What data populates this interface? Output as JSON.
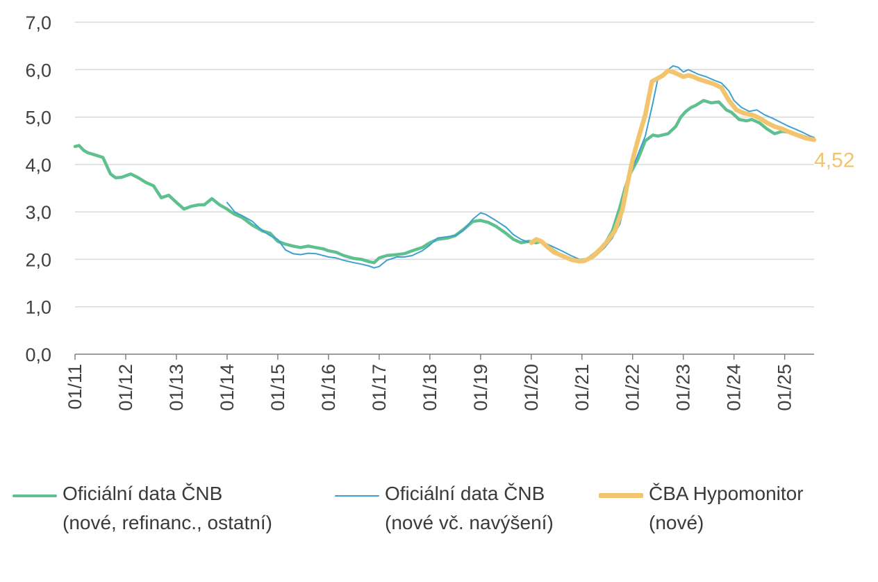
{
  "chart_data": {
    "type": "line",
    "title": "",
    "xlabel": "",
    "ylabel": "",
    "ylim": [
      0,
      7
    ],
    "yticks": [
      "0,0",
      "1,0",
      "2,0",
      "3,0",
      "4,0",
      "5,0",
      "6,0",
      "7,0"
    ],
    "xticks": [
      "01/11",
      "01/12",
      "01/13",
      "01/14",
      "01/15",
      "01/16",
      "01/17",
      "01/18",
      "01/19",
      "01/20",
      "01/21",
      "01/22",
      "01/23",
      "01/24",
      "01/25"
    ],
    "grid": "horizontal",
    "legend_position": "bottom",
    "end_label": "4,52",
    "series": [
      {
        "name_line1": "Oficiální data ČNB",
        "name_line2": "(nové, refinanc., ostatní)",
        "color": "#5ec08e",
        "x": [
          2011.0,
          2011.08,
          2011.17,
          2011.25,
          2011.4,
          2011.55,
          2011.7,
          2011.8,
          2011.92,
          2012.1,
          2012.25,
          2012.4,
          2012.55,
          2012.7,
          2012.85,
          2013.0,
          2013.15,
          2013.3,
          2013.45,
          2013.55,
          2013.7,
          2013.85,
          2014.0,
          2014.05,
          2014.15,
          2014.3,
          2014.5,
          2014.7,
          2014.85,
          2015.0,
          2015.15,
          2015.3,
          2015.45,
          2015.6,
          2015.75,
          2015.9,
          2016.0,
          2016.15,
          2016.3,
          2016.5,
          2016.65,
          2016.8,
          2016.9,
          2017.0,
          2017.15,
          2017.35,
          2017.5,
          2017.65,
          2017.85,
          2018.0,
          2018.15,
          2018.35,
          2018.5,
          2018.65,
          2018.85,
          2019.0,
          2019.15,
          2019.3,
          2019.5,
          2019.65,
          2019.8,
          2019.95,
          2020.1,
          2020.2,
          2020.3,
          2020.45,
          2020.6,
          2020.8,
          2020.95,
          2021.1,
          2021.25,
          2021.45,
          2021.6,
          2021.75,
          2021.85,
          2021.95,
          2022.1,
          2022.25,
          2022.4,
          2022.5,
          2022.7,
          2022.85,
          2022.95,
          2023.05,
          2023.15,
          2023.25,
          2023.4,
          2023.55,
          2023.7,
          2023.85,
          2023.95,
          2024.1,
          2024.25,
          2024.35,
          2024.5,
          2024.65,
          2024.8,
          2024.95,
          2025.1,
          2025.2,
          2025.35,
          2025.5,
          2025.58
        ],
        "values": [
          4.38,
          4.4,
          4.3,
          4.25,
          4.2,
          4.15,
          3.8,
          3.72,
          3.73,
          3.8,
          3.72,
          3.62,
          3.55,
          3.3,
          3.35,
          3.2,
          3.06,
          3.12,
          3.15,
          3.15,
          3.28,
          3.15,
          3.06,
          3.02,
          2.95,
          2.88,
          2.72,
          2.6,
          2.55,
          2.38,
          2.32,
          2.28,
          2.25,
          2.28,
          2.25,
          2.22,
          2.18,
          2.15,
          2.08,
          2.02,
          2.0,
          1.95,
          1.93,
          2.03,
          2.08,
          2.1,
          2.12,
          2.18,
          2.25,
          2.35,
          2.42,
          2.45,
          2.5,
          2.62,
          2.8,
          2.82,
          2.78,
          2.7,
          2.55,
          2.42,
          2.35,
          2.38,
          2.35,
          2.38,
          2.3,
          2.18,
          2.08,
          2.0,
          1.98,
          2.0,
          2.12,
          2.32,
          2.6,
          3.1,
          3.5,
          3.8,
          4.1,
          4.5,
          4.62,
          4.6,
          4.65,
          4.8,
          5.0,
          5.12,
          5.2,
          5.25,
          5.35,
          5.3,
          5.32,
          5.15,
          5.1,
          4.95,
          4.92,
          4.95,
          4.88,
          4.75,
          4.65,
          4.7,
          4.68,
          4.65,
          4.6,
          4.55,
          4.52
        ]
      },
      {
        "name_line1": "Oficiální data ČNB",
        "name_line2": "(nové vč. navýšení)",
        "color": "#3f9fd0",
        "x": [
          2014.0,
          2014.15,
          2014.3,
          2014.5,
          2014.7,
          2014.85,
          2015.0,
          2015.15,
          2015.3,
          2015.45,
          2015.6,
          2015.75,
          2015.9,
          2016.0,
          2016.15,
          2016.3,
          2016.5,
          2016.65,
          2016.8,
          2016.9,
          2017.0,
          2017.15,
          2017.35,
          2017.5,
          2017.65,
          2017.85,
          2018.0,
          2018.15,
          2018.35,
          2018.5,
          2018.65,
          2018.85,
          2019.0,
          2019.1,
          2019.3,
          2019.5,
          2019.65,
          2019.8,
          2019.95,
          2020.1,
          2020.25,
          2020.4,
          2020.6,
          2020.8,
          2020.95,
          2021.1,
          2021.25,
          2021.45,
          2021.6,
          2021.75,
          2021.85,
          2021.95,
          2022.1,
          2022.25,
          2022.4,
          2022.5,
          2022.6,
          2022.7,
          2022.8,
          2022.9,
          2023.0,
          2023.1,
          2023.2,
          2023.3,
          2023.45,
          2023.6,
          2023.75,
          2023.9,
          2024.0,
          2024.15,
          2024.3,
          2024.45,
          2024.6,
          2024.75,
          2024.9,
          2025.05,
          2025.2,
          2025.35,
          2025.5,
          2025.58
        ],
        "values": [
          3.2,
          3.0,
          2.92,
          2.8,
          2.6,
          2.5,
          2.42,
          2.2,
          2.12,
          2.1,
          2.13,
          2.12,
          2.08,
          2.05,
          2.03,
          1.98,
          1.93,
          1.9,
          1.86,
          1.82,
          1.85,
          1.98,
          2.05,
          2.05,
          2.08,
          2.18,
          2.3,
          2.45,
          2.48,
          2.5,
          2.6,
          2.85,
          2.98,
          2.95,
          2.82,
          2.68,
          2.52,
          2.42,
          2.36,
          2.38,
          2.35,
          2.28,
          2.18,
          2.07,
          2.0,
          1.98,
          2.05,
          2.25,
          2.45,
          2.75,
          3.2,
          3.8,
          4.2,
          4.6,
          5.3,
          5.82,
          5.92,
          6.0,
          6.08,
          6.05,
          5.95,
          6.0,
          5.95,
          5.9,
          5.85,
          5.78,
          5.72,
          5.55,
          5.35,
          5.2,
          5.12,
          5.15,
          5.05,
          4.98,
          4.9,
          4.82,
          4.75,
          4.68,
          4.6,
          4.57
        ]
      },
      {
        "name_line1": "ČBA Hypomonitor",
        "name_line2": "(nové)",
        "color": "#f2c46d",
        "x": [
          2020.0,
          2020.1,
          2020.2,
          2020.3,
          2020.45,
          2020.6,
          2020.8,
          2020.95,
          2021.05,
          2021.2,
          2021.35,
          2021.5,
          2021.65,
          2021.8,
          2021.9,
          2022.0,
          2022.1,
          2022.25,
          2022.38,
          2022.5,
          2022.6,
          2022.7,
          2022.8,
          2022.9,
          2023.0,
          2023.1,
          2023.2,
          2023.3,
          2023.45,
          2023.6,
          2023.75,
          2023.9,
          2024.05,
          2024.2,
          2024.35,
          2024.5,
          2024.65,
          2024.8,
          2024.95,
          2025.1,
          2025.25,
          2025.4,
          2025.58
        ],
        "values": [
          2.35,
          2.42,
          2.38,
          2.28,
          2.15,
          2.08,
          1.99,
          1.96,
          1.97,
          2.05,
          2.2,
          2.38,
          2.6,
          3.05,
          3.6,
          4.1,
          4.5,
          5.05,
          5.75,
          5.82,
          5.88,
          5.98,
          5.95,
          5.9,
          5.85,
          5.88,
          5.85,
          5.8,
          5.75,
          5.7,
          5.62,
          5.35,
          5.15,
          5.08,
          5.05,
          4.98,
          4.88,
          4.8,
          4.75,
          4.68,
          4.62,
          4.56,
          4.52
        ]
      }
    ]
  }
}
